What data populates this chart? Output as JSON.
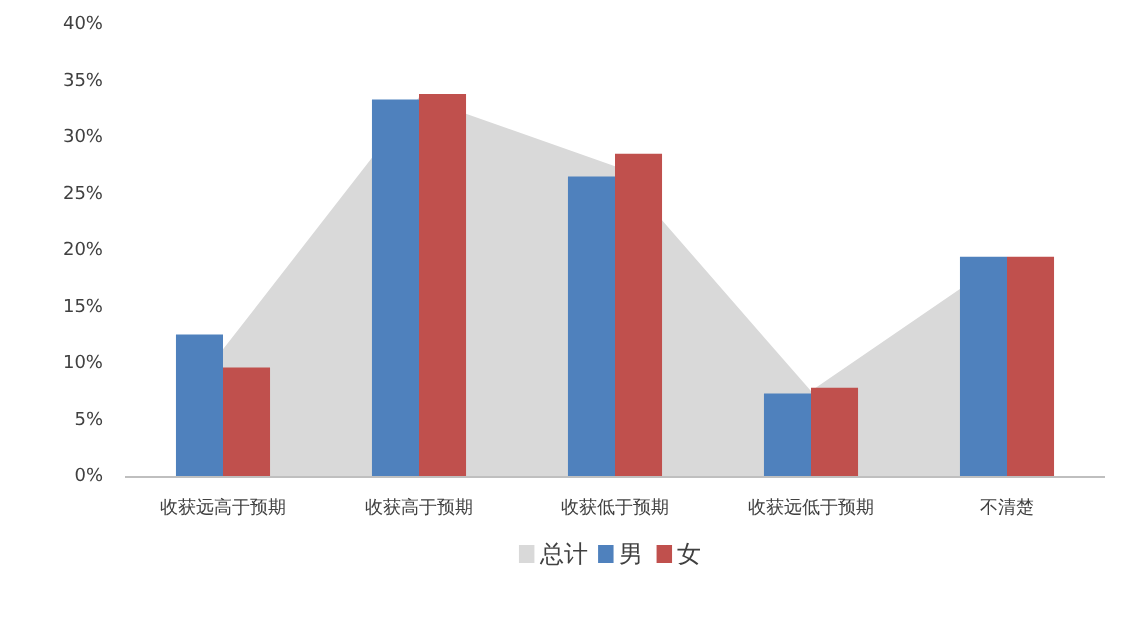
{
  "chart_data": {
    "type": "bar",
    "categories": [
      "收获远高于预期",
      "收获高于预期",
      "收获低于预期",
      "收获远低于预期",
      "不清楚"
    ],
    "series": [
      {
        "name": "总计",
        "type": "area",
        "color": "#d9d9d9",
        "values": [
          11.3,
          33.6,
          27.5,
          7.6,
          19.5
        ]
      },
      {
        "name": "男",
        "color": "#4f81bd",
        "values": [
          12.6,
          33.4,
          26.6,
          7.4,
          19.5
        ]
      },
      {
        "name": "女",
        "color": "#c0504d",
        "values": [
          9.7,
          33.9,
          28.6,
          7.9,
          19.5
        ]
      }
    ],
    "ylim": [
      0,
      40
    ],
    "yticks": [
      {
        "value": 0,
        "label": "0%"
      },
      {
        "value": 5,
        "label": "5%"
      },
      {
        "value": 10,
        "label": "10%"
      },
      {
        "value": 15,
        "label": "15%"
      },
      {
        "value": 20,
        "label": "20%"
      },
      {
        "value": 25,
        "label": "25%"
      },
      {
        "value": 30,
        "label": "30%"
      },
      {
        "value": 35,
        "label": "35%"
      },
      {
        "value": 40,
        "label": "40%"
      }
    ],
    "grid": false,
    "legend": "bottom"
  }
}
